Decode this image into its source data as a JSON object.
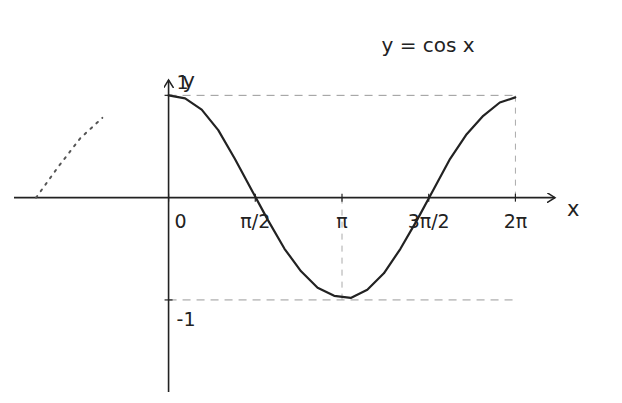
{
  "chart_data": {
    "type": "line",
    "annotation": "y = cos x",
    "x_label": "x",
    "y_label": "y",
    "xlim": [
      -2.8,
      7.0
    ],
    "ylim": [
      -1.9,
      1.15
    ],
    "xticks": [
      0,
      {
        "value": 1.5708,
        "label": "π/2"
      },
      {
        "value": 3.1416,
        "label": "π"
      },
      {
        "value": 4.7124,
        "label": "3π/2"
      },
      {
        "value": 6.2832,
        "label": "2π"
      }
    ],
    "yticks": [
      -1,
      1
    ],
    "grid": false,
    "series": [
      {
        "color": "#222222",
        "line_style": "solid",
        "x": [
          0,
          0.3,
          0.6,
          0.9,
          1.2,
          1.5,
          1.8,
          2.1,
          2.4,
          2.7,
          3.0,
          3.3,
          3.6,
          3.9,
          4.2,
          4.5,
          4.8,
          5.1,
          5.4,
          5.7,
          6.0,
          6.28
        ],
        "values": [
          1,
          0.97,
          0.86,
          0.66,
          0.38,
          0.08,
          -0.22,
          -0.5,
          -0.72,
          -0.88,
          -0.96,
          -0.98,
          -0.9,
          -0.74,
          -0.5,
          -0.22,
          0.08,
          0.38,
          0.62,
          0.8,
          0.93,
          0.98
        ]
      },
      {
        "color": "#555555",
        "line_style": "dotted",
        "x": [
          -2.4,
          -2.0,
          -1.6,
          -1.2
        ],
        "values": [
          0,
          0.3,
          0.58,
          0.78
        ]
      }
    ]
  }
}
